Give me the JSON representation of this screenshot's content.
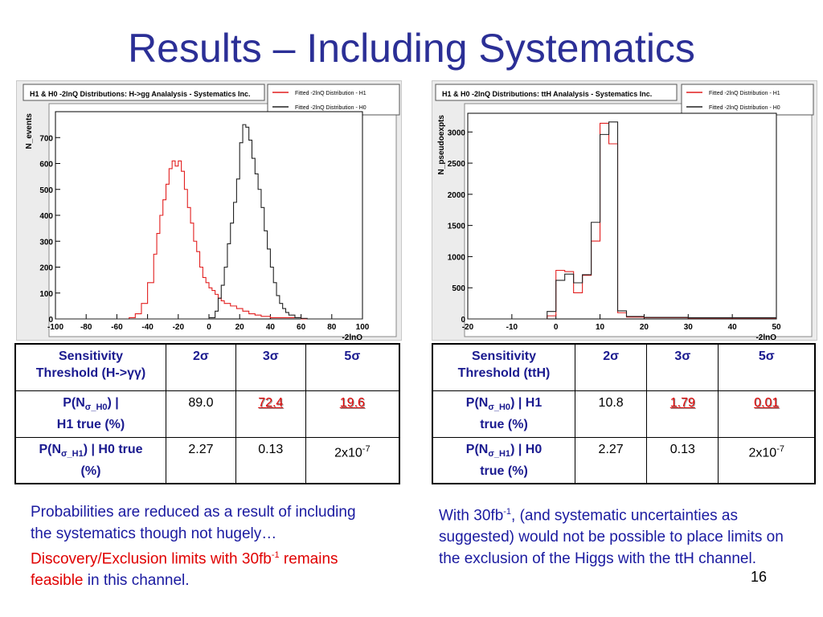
{
  "title": "Results – Including Systematics",
  "page_number": "16",
  "colors": {
    "title": "#2b2f96",
    "h1_line": "#e21f1f",
    "h0_line": "#222222",
    "highlight": "#e00000"
  },
  "chart_data": [
    {
      "type": "line",
      "title": "H1 & H0 -2lnQ Distributions: H->gg Analalysis - Systematics Inc.",
      "xlabel": "-2lnQ",
      "ylabel": "N_events",
      "xlim": [
        -100,
        100
      ],
      "ylim": [
        0,
        800
      ],
      "xticks": [
        -100,
        -80,
        -60,
        -40,
        -20,
        0,
        20,
        40,
        60,
        80,
        100
      ],
      "yticks": [
        0,
        100,
        200,
        300,
        400,
        500,
        600,
        700
      ],
      "xtick_labels": [
        "-100",
        "-80",
        "-60",
        "-40",
        "-20",
        "0",
        "20",
        "40",
        "60",
        "80",
        "100"
      ],
      "ytick_labels": [
        "0",
        "100",
        "200",
        "300",
        "400",
        "500",
        "600",
        "700"
      ],
      "legend": [
        {
          "label": "Fitted -2lnQ Distribution - H1",
          "color": "#e21f1f"
        },
        {
          "label": "Fitted -2lnQ Distribution - H0",
          "color": "#222222"
        }
      ],
      "series": [
        {
          "name": "Fitted -2lnQ Distribution - H1",
          "color": "#e21f1f",
          "x": [
            -100,
            -60,
            -52,
            -48,
            -44,
            -40,
            -36,
            -34,
            -32,
            -30,
            -28,
            -26,
            -24,
            -22,
            -20,
            -18,
            -16,
            -14,
            -12,
            -10,
            -8,
            -6,
            -4,
            -2,
            0,
            2,
            4,
            6,
            8,
            10,
            14,
            18,
            22,
            26,
            30,
            34,
            40,
            60,
            100
          ],
          "y": [
            0,
            0,
            5,
            20,
            60,
            140,
            250,
            330,
            400,
            460,
            520,
            580,
            610,
            590,
            610,
            570,
            500,
            430,
            370,
            300,
            260,
            200,
            160,
            140,
            120,
            110,
            95,
            80,
            70,
            60,
            50,
            40,
            30,
            20,
            15,
            10,
            5,
            0,
            0
          ]
        },
        {
          "name": "Fitted -2lnQ Distribution - H0",
          "color": "#222222",
          "x": [
            -100,
            -4,
            0,
            4,
            6,
            8,
            10,
            12,
            14,
            16,
            18,
            20,
            22,
            24,
            26,
            28,
            30,
            32,
            34,
            36,
            38,
            40,
            42,
            44,
            46,
            48,
            50,
            52,
            56,
            60,
            64,
            100
          ],
          "y": [
            0,
            0,
            5,
            30,
            80,
            130,
            200,
            290,
            370,
            450,
            540,
            680,
            750,
            740,
            690,
            620,
            560,
            500,
            430,
            340,
            270,
            200,
            140,
            90,
            60,
            40,
            25,
            15,
            5,
            2,
            0,
            0
          ]
        }
      ]
    },
    {
      "type": "line",
      "title": "H1 & H0 -2lnQ Distributions: ttH Analalysis - Systematics Inc.",
      "xlabel": "-2lnQ",
      "ylabel": "N_pseudoexpts",
      "xlim": [
        -20,
        50
      ],
      "ylim": [
        0,
        3300
      ],
      "xticks": [
        -20,
        -10,
        0,
        10,
        20,
        30,
        40,
        50
      ],
      "yticks": [
        0,
        500,
        1000,
        1500,
        2000,
        2500,
        3000
      ],
      "xtick_labels": [
        "-20",
        "-10",
        "0",
        "10",
        "20",
        "30",
        "40",
        "50"
      ],
      "ytick_labels": [
        "0",
        "500",
        "1000",
        "1500",
        "2000",
        "2500",
        "3000"
      ],
      "legend": [
        {
          "label": "Fitted -2lnQ Distribution - H1",
          "color": "#e21f1f"
        },
        {
          "label": "Fitted -2lnQ Distribution - H0",
          "color": "#222222"
        }
      ],
      "series": [
        {
          "name": "Fitted -2lnQ Distribution - H1",
          "color": "#e21f1f",
          "x": [
            -20,
            -2,
            0,
            2,
            4,
            6,
            8,
            10,
            12,
            14,
            16,
            20,
            30,
            50
          ],
          "y": [
            0,
            50,
            780,
            760,
            420,
            700,
            1250,
            3140,
            2810,
            100,
            30,
            20,
            15,
            0
          ]
        },
        {
          "name": "Fitted -2lnQ Distribution - H0",
          "color": "#222222",
          "x": [
            -20,
            -2,
            0,
            2,
            4,
            6,
            8,
            10,
            12,
            14,
            16,
            20,
            30,
            50
          ],
          "y": [
            0,
            120,
            620,
            720,
            580,
            710,
            1550,
            2960,
            3160,
            130,
            40,
            25,
            20,
            0
          ]
        }
      ]
    }
  ],
  "table_left": {
    "header": {
      "c0_line1": "Sensitivity",
      "c0_line2": "Threshold (H->",
      "c0_gamma": "γγ",
      "c0_close": ")",
      "c1": "2σ",
      "c2": "3σ",
      "c3": "5σ"
    },
    "row1": {
      "label_a": "P(N",
      "label_sub": "σ_H0",
      "label_b": ") |",
      "label_line2": "H1 true  (%)",
      "v1": "89.0",
      "v2": "72.4",
      "v3": "19.6"
    },
    "row2": {
      "label_a": "P(N",
      "label_sub": "σ_H1",
      "label_b": ") | H0 true",
      "label_line2": "(%)",
      "v1": "2.27",
      "v2": "0.13",
      "v3_base": "2x10",
      "v3_exp": "-7"
    }
  },
  "table_right": {
    "header": {
      "c0_line1": "Sensitivity",
      "c0_line2": "Threshold (ttH)",
      "c1": "2σ",
      "c2": "3σ",
      "c3": "5σ"
    },
    "row1": {
      "label_a": "P(N",
      "label_sub": "σ_H0",
      "label_b": ") | H1",
      "label_line2": "true  (%)",
      "v1": "10.8",
      "v2": "1.79",
      "v3": "0.01"
    },
    "row2": {
      "label_a": "P(N",
      "label_sub": "σ_H1",
      "label_b": ") | H0",
      "label_line2": "true  (%)",
      "v1": "2.27",
      "v2": "0.13",
      "v3_base": "2x10",
      "v3_exp": "-7"
    }
  },
  "para_left": {
    "t1": "Probabilities are reduced as a result of including the systematics though not hugely… ",
    "hl1": "Discovery/Exclusion limits with 30fb",
    "hl_exp": "-1",
    "hl2": " remains feasible",
    "t2": " in this channel."
  },
  "para_right": {
    "t1": "With 30fb",
    "t1_exp": "-1",
    "t2": ", (and systematic uncertainties as suggested) would not be possible to place limits on the exclusion of the Higgs with the ttH channel."
  }
}
